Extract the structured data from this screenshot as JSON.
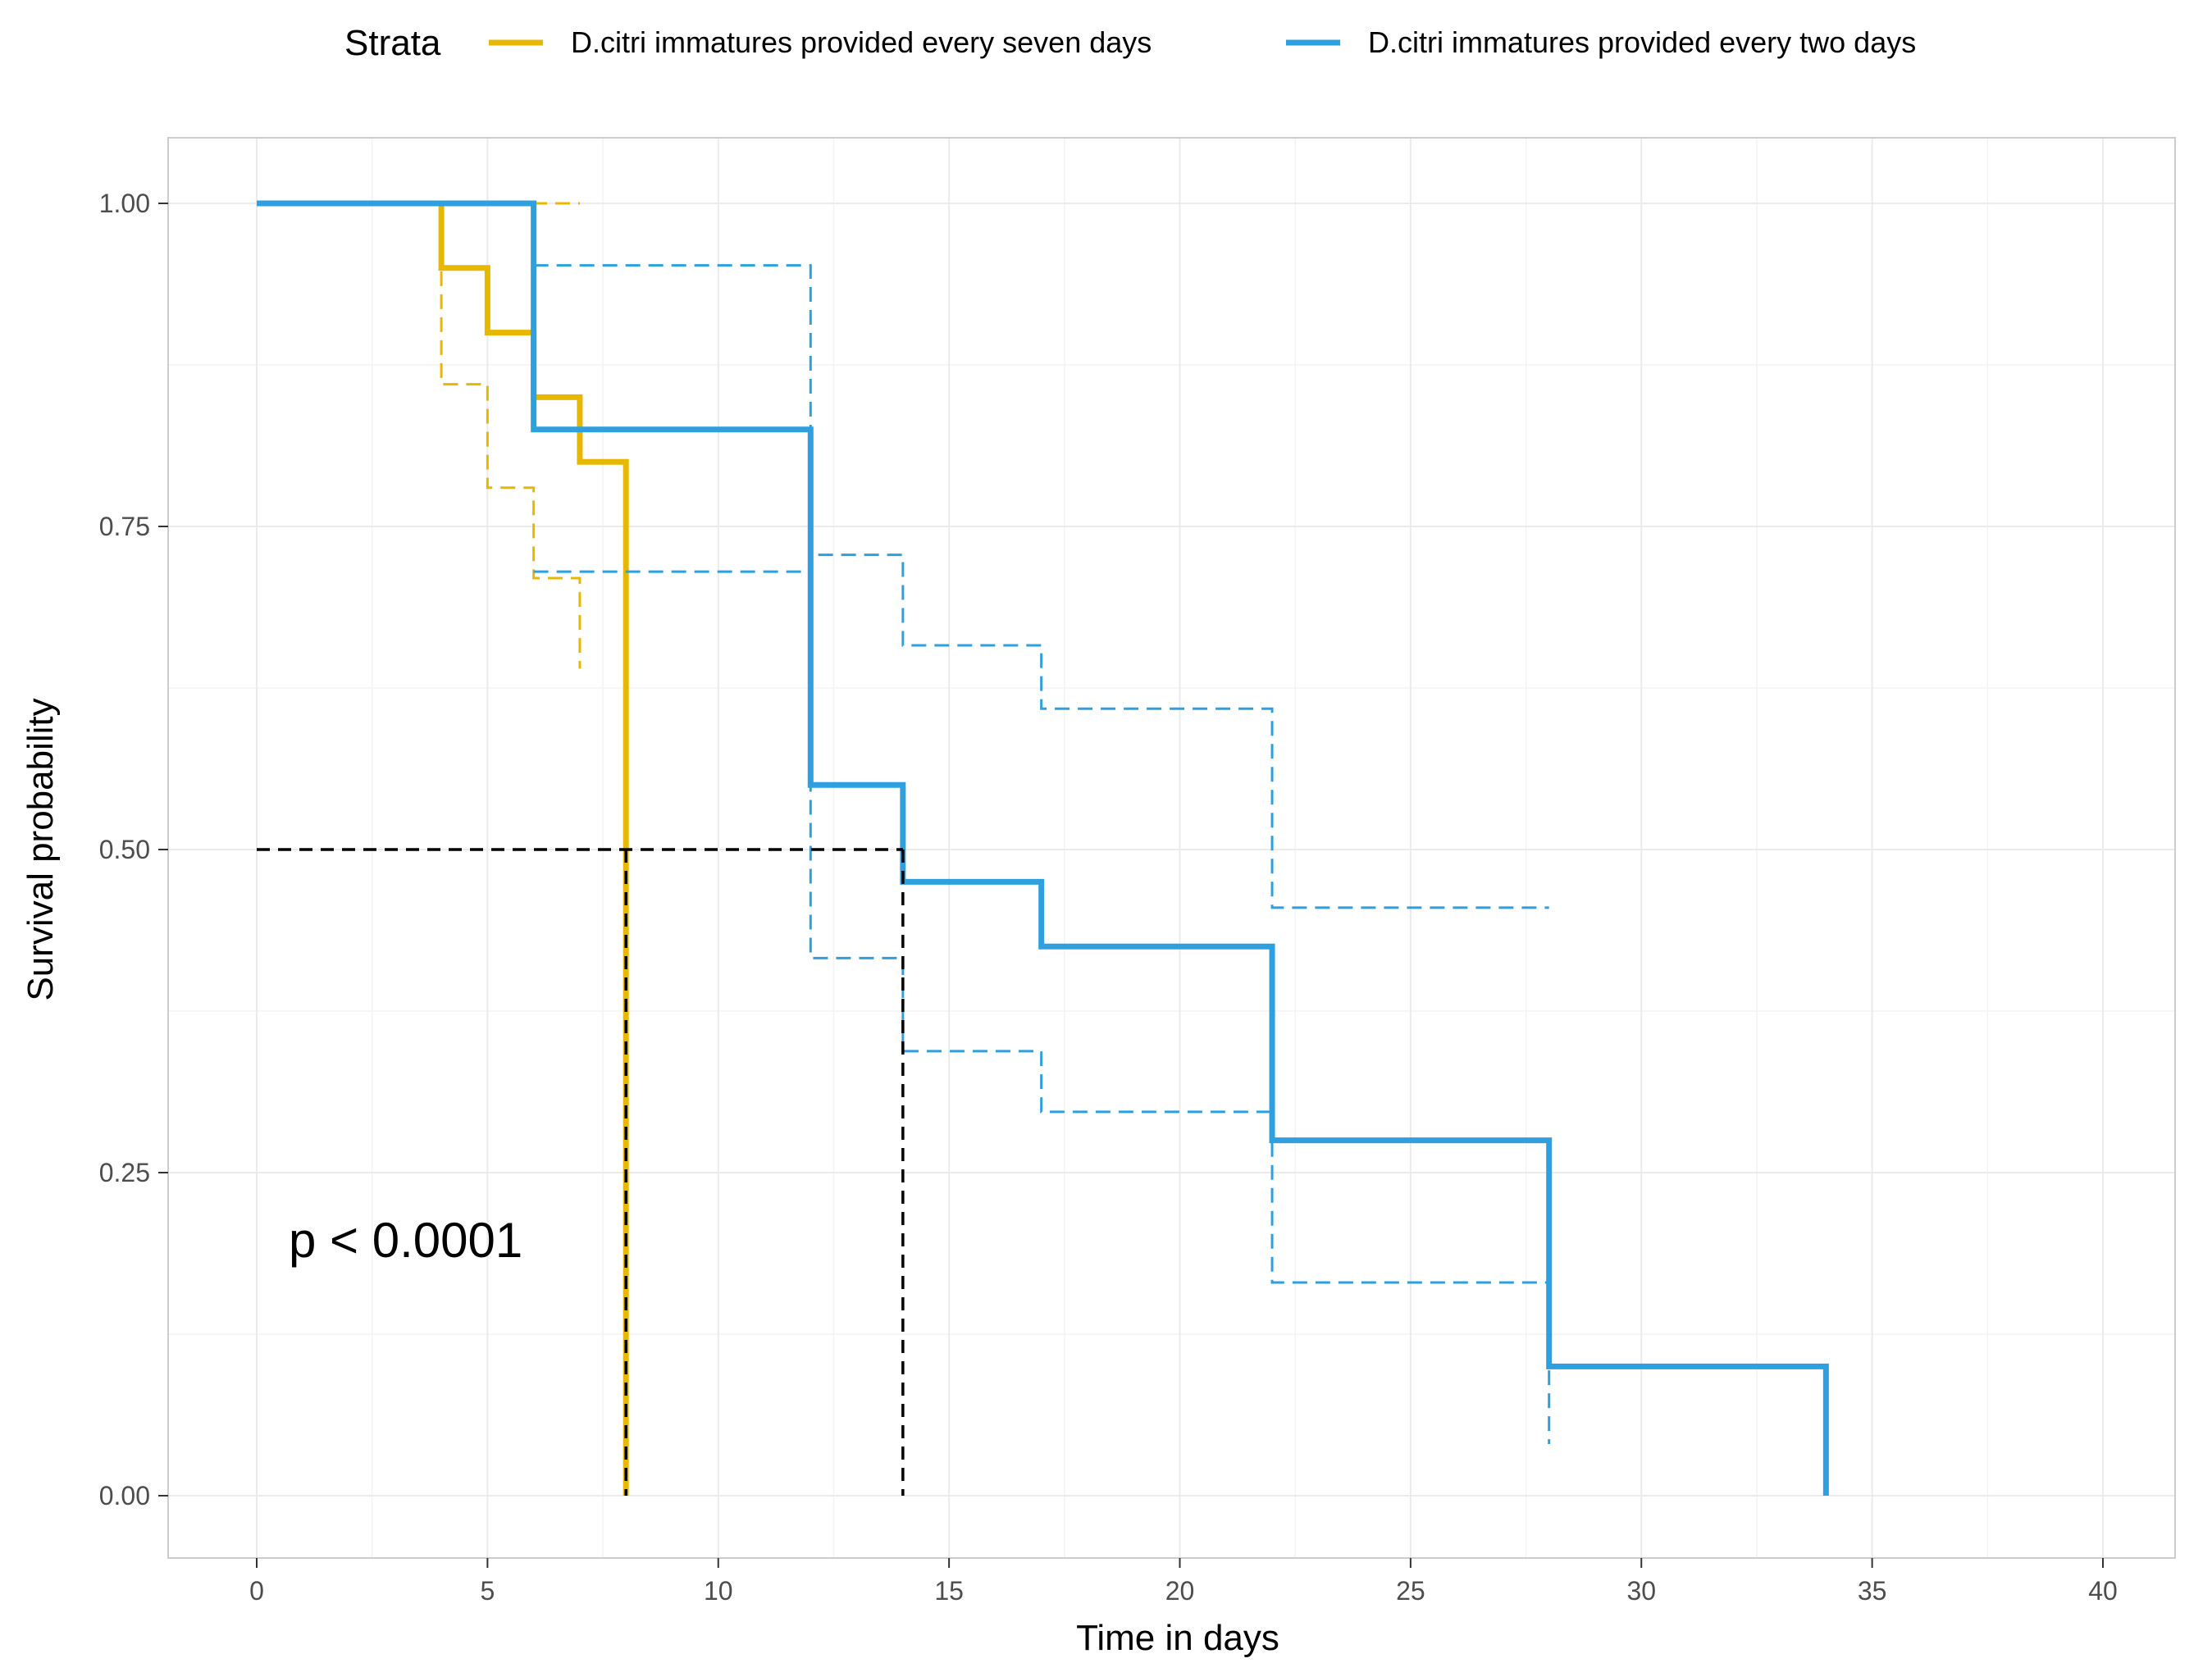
{
  "chart_data": {
    "type": "line",
    "subtype": "kaplan-meier survival curve with confidence intervals",
    "title": "",
    "xlabel": "Time in days",
    "ylabel": "Survival probability",
    "xlim": [
      -2,
      42
    ],
    "ylim": [
      -0.05,
      1.05
    ],
    "x_ticks": [
      0,
      5,
      10,
      15,
      20,
      25,
      30,
      35,
      40
    ],
    "x_tick_labels": [
      "0",
      "5",
      "10",
      "15",
      "20",
      "25",
      "30",
      "35",
      "40"
    ],
    "y_ticks": [
      0,
      0.25,
      0.5,
      0.75,
      1.0
    ],
    "y_tick_labels": [
      "0.00",
      "0.25",
      "0.50",
      "0.75",
      "1.00"
    ],
    "grid": true,
    "legend": {
      "title": "Strata",
      "position": "top",
      "entries": [
        {
          "label": "D.citri immatures provided every seven days",
          "color": "#E7B800"
        },
        {
          "label": "D.citri immatures provided every two days",
          "color": "#2E9FDF"
        }
      ]
    },
    "annotation": "p < 0.0001",
    "series": [
      {
        "name": "D.citri immatures provided every seven days",
        "color": "#E7B800",
        "survival": {
          "x": [
            0,
            4,
            5,
            6,
            7,
            8
          ],
          "y": [
            1.0,
            0.95,
            0.9,
            0.85,
            0.8,
            0.0
          ]
        },
        "ci_upper": {
          "x": [
            0,
            7
          ],
          "y": [
            1.0,
            1.0
          ]
        },
        "ci_lower": {
          "x": [
            0,
            4,
            5,
            6,
            7
          ],
          "y": [
            1.0,
            0.86,
            0.78,
            0.71,
            0.64
          ]
        }
      },
      {
        "name": "D.citri immatures provided every two days",
        "color": "#2E9FDF",
        "survival": {
          "x": [
            0,
            6,
            12,
            14,
            17,
            22,
            28,
            34
          ],
          "y": [
            1.0,
            0.825,
            0.55,
            0.475,
            0.425,
            0.275,
            0.1,
            0.0
          ]
        },
        "ci_upper": {
          "x": [
            6,
            12,
            14,
            17,
            22,
            28
          ],
          "y": [
            0.952,
            0.728,
            0.658,
            0.609,
            0.455,
            0.455
          ]
        },
        "ci_lower": {
          "x": [
            6,
            12,
            14,
            17,
            22,
            28
          ],
          "y": [
            0.715,
            0.416,
            0.344,
            0.297,
            0.165,
            0.04
          ]
        }
      }
    ],
    "median_lines": {
      "color": "#000000",
      "y": 0.5,
      "x": [
        8,
        14
      ]
    }
  }
}
